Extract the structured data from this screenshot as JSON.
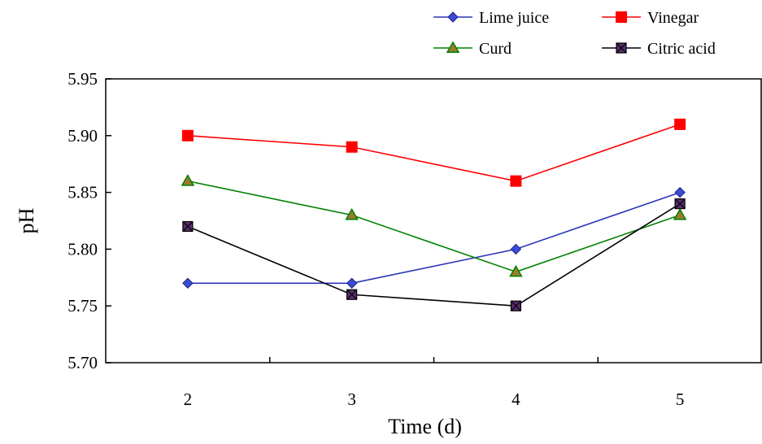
{
  "chart_data": {
    "type": "line",
    "title": "",
    "xlabel": "Time (d)",
    "ylabel": "pH",
    "x": [
      2,
      3,
      4,
      5
    ],
    "xticks": [
      "2",
      "3",
      "4",
      "5"
    ],
    "yticks": [
      "5.70",
      "5.75",
      "5.80",
      "5.85",
      "5.90",
      "5.95"
    ],
    "ylim": [
      5.7,
      5.95
    ],
    "grid": false,
    "legend_position": "top-right",
    "series": [
      {
        "name": "Lime juice",
        "values": [
          5.77,
          5.77,
          5.8,
          5.85
        ],
        "color": "#2a35b8",
        "marker": "diamond",
        "marker_fill": "#3b4bd9"
      },
      {
        "name": "Vinegar",
        "values": [
          5.9,
          5.89,
          5.86,
          5.91
        ],
        "color": "#ff0000",
        "marker": "square",
        "marker_fill": "#ff0000"
      },
      {
        "name": "Curd",
        "values": [
          5.86,
          5.83,
          5.78,
          5.83
        ],
        "color": "#008000",
        "marker": "triangle",
        "marker_fill": "#9c7a2c"
      },
      {
        "name": "Citric acid",
        "values": [
          5.82,
          5.76,
          5.75,
          5.84
        ],
        "color": "#000000",
        "marker": "square-x",
        "marker_fill": "#5a2e6f"
      }
    ]
  }
}
